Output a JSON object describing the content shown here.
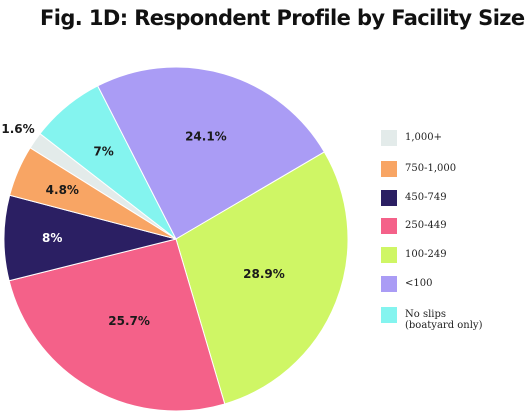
{
  "chart_data": {
    "type": "pie",
    "title": "Fig. 1D: Respondent Profile by Facility Size",
    "slices": [
      {
        "name": "1,000+",
        "value": 1.6,
        "label": "1.6%",
        "color": "#e3ebea"
      },
      {
        "name": "No slips (boatyard only)",
        "label_line1": "No slips",
        "label_line2": "(boatyard only)",
        "value": 7,
        "label": "7%",
        "color": "#84f4ef"
      },
      {
        "name": "<100",
        "value": 24.1,
        "label": "24.1%",
        "color": "#aa9cf5"
      },
      {
        "name": "100-249",
        "value": 28.9,
        "label": "28.9%",
        "color": "#cff665"
      },
      {
        "name": "250-449",
        "value": 25.7,
        "label": "25.7%",
        "color": "#f46189"
      },
      {
        "name": "450-749",
        "value": 8,
        "label": "8%",
        "color": "#2b1f63"
      },
      {
        "name": "750-1,000",
        "value": 4.8,
        "label": "4.8%",
        "color": "#f8a564"
      }
    ],
    "legend": [
      {
        "label": "1,000+",
        "color": "#e3ebea"
      },
      {
        "label": "750-1,000",
        "color": "#f8a564"
      },
      {
        "label": "450-749",
        "color": "#2b1f63"
      },
      {
        "label": "250-449",
        "color": "#f46189"
      },
      {
        "label": "100-249",
        "color": "#cff665"
      },
      {
        "label": "<100",
        "color": "#aa9cf5"
      },
      {
        "label": "No slips",
        "sublabel": "(boatyard only)",
        "color": "#84f4ef"
      }
    ],
    "legend_position": "right"
  }
}
